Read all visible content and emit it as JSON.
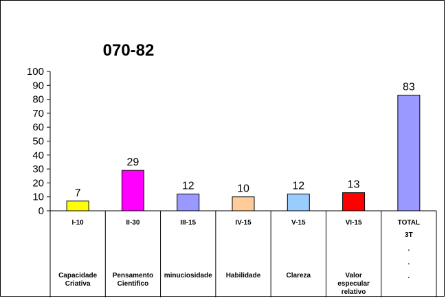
{
  "chart_data": {
    "type": "bar",
    "title": "070-82",
    "ylim": [
      0,
      100
    ],
    "yticks": [
      "0",
      "10",
      "20",
      "30",
      "40",
      "50",
      "60",
      "70",
      "80",
      "90",
      "100"
    ],
    "grid": false,
    "legend": "none",
    "categories": [
      "I-10",
      "II-30",
      "III-15",
      "IV-15",
      "V-15",
      "VI-15",
      "TOTAL"
    ],
    "values": [
      7,
      29,
      12,
      10,
      12,
      13,
      83
    ],
    "data_labels": [
      "7",
      "29",
      "12",
      "10",
      "12",
      "13",
      "83"
    ],
    "colors": [
      "#ffff00",
      "#ff00ff",
      "#9999ff",
      "#ffcc99",
      "#99ccff",
      "#ff0000",
      "#9999ff"
    ],
    "table_rows": [
      [
        "",
        "",
        "",
        "",
        "",
        "",
        "3T\n.\n.\n."
      ],
      [
        "Capacidade\nCriativa",
        "Pensamento\nCientifico",
        "minuciosidade",
        "Habilidade",
        "Clareza",
        "Valor\nespecular\nrelativo",
        ""
      ]
    ]
  }
}
